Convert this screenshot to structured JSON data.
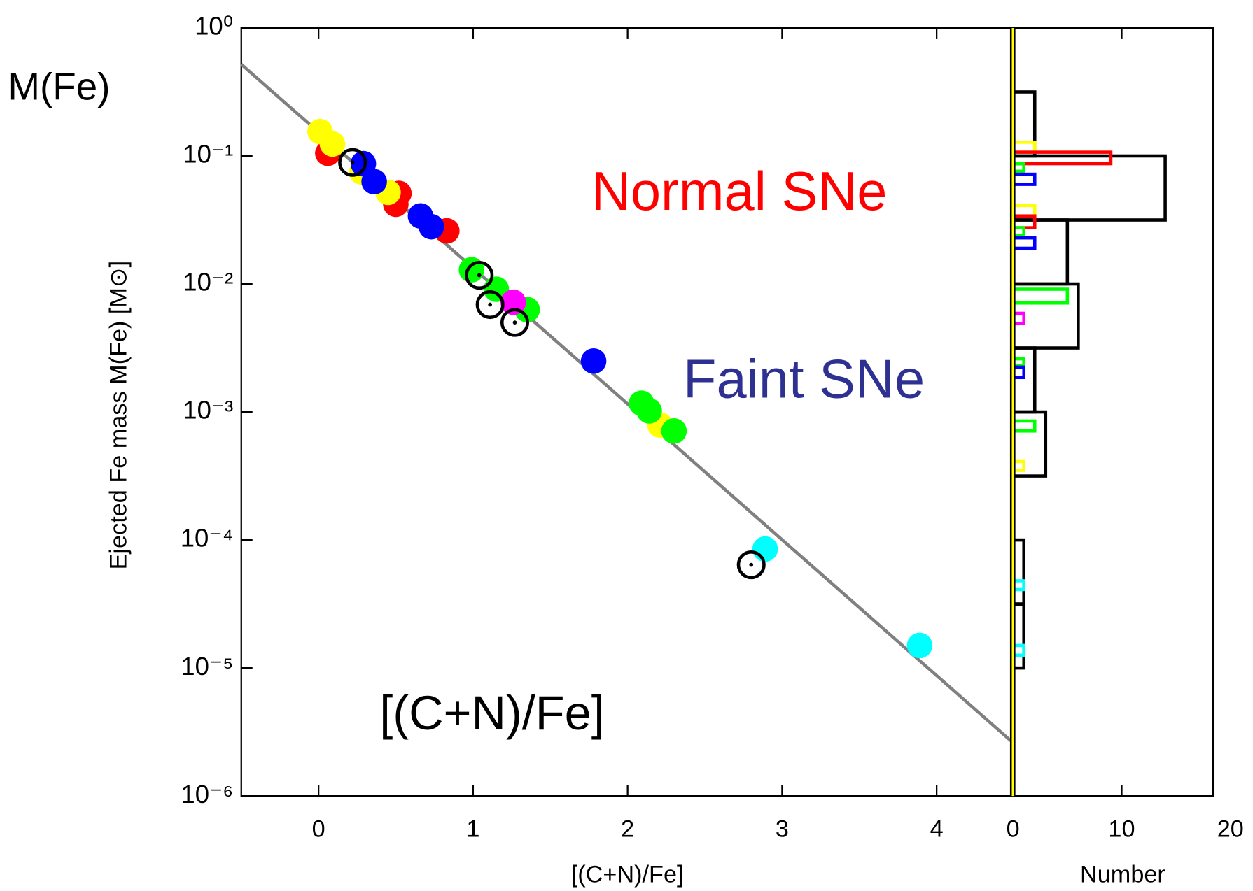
{
  "chart_data": [
    {
      "type": "scatter",
      "xlabel": "[(C+N)/Fe]",
      "ylabel": "Ejected Fe mass M(Fe) [M⊙]",
      "xlim": [
        -0.5,
        4.48
      ],
      "ylim": [
        1e-06,
        1
      ],
      "yscale": "log",
      "xticks": [
        0,
        1,
        2,
        3,
        4
      ],
      "yticks": [
        {
          "value": 1e-06,
          "label": "10⁻⁶"
        },
        {
          "value": 1e-05,
          "label": "10⁻⁵"
        },
        {
          "value": 0.0001,
          "label": "10⁻⁴"
        },
        {
          "value": 0.001,
          "label": "10⁻³"
        },
        {
          "value": 0.01,
          "label": "10⁻²"
        },
        {
          "value": 0.1,
          "label": "10⁻¹"
        },
        {
          "value": 1,
          "label": "10⁰"
        }
      ],
      "annotations": [
        {
          "text": "M(Fe)",
          "color": "#000000"
        },
        {
          "text": "Normal SNe",
          "color": "#ff0000"
        },
        {
          "text": "Faint SNe",
          "color": "#2e3192"
        },
        {
          "text": "[(C+N)/Fe]",
          "color": "#000000"
        }
      ],
      "fit_line": {
        "color": "#808080",
        "x": [
          -0.5,
          4.48
        ],
        "y": [
          0.52,
          2.7e-06
        ]
      },
      "series": [
        {
          "color": "#ff0000",
          "marker": "filled",
          "x": [
            0.06,
            0.52,
            0.5,
            0.83
          ],
          "y": [
            0.105,
            0.051,
            0.042,
            0.026
          ]
        },
        {
          "color": "#ffff00",
          "marker": "filled",
          "x": [
            0.01,
            0.09,
            0.28,
            0.45,
            2.21
          ],
          "y": [
            0.155,
            0.124,
            0.075,
            0.052,
            0.00079
          ]
        },
        {
          "color": "#0000ff",
          "marker": "filled",
          "x": [
            0.29,
            0.36,
            0.66,
            0.73,
            1.78
          ],
          "y": [
            0.087,
            0.063,
            0.034,
            0.028,
            0.0025
          ]
        },
        {
          "color": "#00ff00",
          "marker": "filled",
          "x": [
            0.99,
            1.15,
            1.35,
            2.09,
            2.14,
            2.3
          ],
          "y": [
            0.0129,
            0.0091,
            0.0063,
            0.00117,
            0.00102,
            0.00071
          ]
        },
        {
          "color": "#ff00ff",
          "marker": "filled",
          "x": [
            1.26
          ],
          "y": [
            0.0072
          ]
        },
        {
          "color": "#00ffff",
          "marker": "filled",
          "x": [
            2.89,
            3.89
          ],
          "y": [
            8.5e-05,
            1.5e-05
          ]
        },
        {
          "color": "#000000",
          "marker": "open",
          "x": [
            0.22,
            1.04,
            1.11,
            1.27,
            2.8
          ],
          "y": [
            0.089,
            0.0117,
            0.0069,
            0.005,
            6.4e-05
          ]
        }
      ]
    },
    {
      "type": "histogram",
      "orientation": "horizontal",
      "xlabel": "Number",
      "xlim": [
        -0.2,
        18.4
      ],
      "xticks": [
        0,
        10,
        20
      ],
      "ylim": [
        1e-06,
        1
      ],
      "yscale": "log",
      "zero_line_color": "#ffff00",
      "color": "#000000",
      "bins": [
        1e-05,
        3.162e-05,
        0.0001,
        0.0003162,
        0.001,
        0.003162,
        0.01,
        0.03162,
        0.1,
        0.3162
      ],
      "counts": [
        1,
        1,
        0,
        3,
        2,
        6,
        5,
        14,
        2
      ],
      "sub_bars": [
        {
          "color": "#ffff00",
          "ylo": 0.107,
          "yhi": 0.128,
          "count": 2
        },
        {
          "color": "#ff0000",
          "ylo": 0.087,
          "yhi": 0.107,
          "count": 9
        },
        {
          "color": "#00ff00",
          "ylo": 0.076,
          "yhi": 0.087,
          "count": 1
        },
        {
          "color": "#0000ff",
          "ylo": 0.06,
          "yhi": 0.072,
          "count": 2
        },
        {
          "color": "#ffff00",
          "ylo": 0.034,
          "yhi": 0.041,
          "count": 2
        },
        {
          "color": "#ff0000",
          "ylo": 0.0275,
          "yhi": 0.034,
          "count": 2
        },
        {
          "color": "#00ff00",
          "ylo": 0.024,
          "yhi": 0.0275,
          "count": 1
        },
        {
          "color": "#0000ff",
          "ylo": 0.019,
          "yhi": 0.0229,
          "count": 2
        },
        {
          "color": "#00ff00",
          "ylo": 0.0071,
          "yhi": 0.0091,
          "count": 5
        },
        {
          "color": "#ff00ff",
          "ylo": 0.0049,
          "yhi": 0.0059,
          "count": 1
        },
        {
          "color": "#00ff00",
          "ylo": 0.0023,
          "yhi": 0.0026,
          "count": 1
        },
        {
          "color": "#0000ff",
          "ylo": 0.00186,
          "yhi": 0.00224,
          "count": 1
        },
        {
          "color": "#00ff00",
          "ylo": 0.00071,
          "yhi": 0.00085,
          "count": 2
        },
        {
          "color": "#ffff00",
          "ylo": 0.00035,
          "yhi": 0.00041,
          "count": 1
        },
        {
          "color": "#00ffff",
          "ylo": 4.1e-05,
          "yhi": 4.8e-05,
          "count": 1
        },
        {
          "color": "#00ffff",
          "ylo": 1.26e-05,
          "yhi": 1.5e-05,
          "count": 1
        }
      ]
    }
  ]
}
